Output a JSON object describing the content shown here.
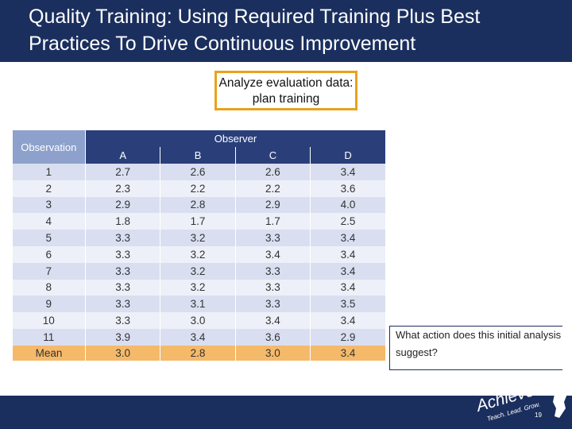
{
  "slide": {
    "title": "Quality Training: Using Required Training Plus Best Practices To Drive Continuous Improvement",
    "callout": "Analyze evaluation data: plan training",
    "question": "What action does this initial analysis suggest?",
    "slide_number": "19",
    "logo": {
      "brand": "AchieveNJ",
      "tagline": "Teach. Lead. Grow.",
      "colors": {
        "navy": "#1b2f5e",
        "white": "#ffffff"
      }
    }
  },
  "table": {
    "observation_header": "Observation",
    "observer_header": "Observer",
    "observers": [
      "A",
      "B",
      "C",
      "D"
    ],
    "rows": [
      {
        "observation": "1",
        "values": [
          "2.7",
          "2.6",
          "2.6",
          "3.4"
        ]
      },
      {
        "observation": "2",
        "values": [
          "2.3",
          "2.2",
          "2.2",
          "3.6"
        ]
      },
      {
        "observation": "3",
        "values": [
          "2.9",
          "2.8",
          "2.9",
          "4.0"
        ]
      },
      {
        "observation": "4",
        "values": [
          "1.8",
          "1.7",
          "1.7",
          "2.5"
        ]
      },
      {
        "observation": "5",
        "values": [
          "3.3",
          "3.2",
          "3.3",
          "3.4"
        ]
      },
      {
        "observation": "6",
        "values": [
          "3.3",
          "3.2",
          "3.4",
          "3.4"
        ]
      },
      {
        "observation": "7",
        "values": [
          "3.3",
          "3.2",
          "3.3",
          "3.4"
        ]
      },
      {
        "observation": "8",
        "values": [
          "3.3",
          "3.2",
          "3.3",
          "3.4"
        ]
      },
      {
        "observation": "9",
        "values": [
          "3.3",
          "3.1",
          "3.3",
          "3.5"
        ]
      },
      {
        "observation": "10",
        "values": [
          "3.3",
          "3.0",
          "3.4",
          "3.4"
        ]
      },
      {
        "observation": "11",
        "values": [
          "3.9",
          "3.4",
          "3.6",
          "2.9"
        ]
      }
    ],
    "mean": {
      "label": "Mean",
      "values": [
        "3.0",
        "2.8",
        "3.0",
        "3.4"
      ]
    },
    "colors": {
      "header": "#2a3f7a",
      "observation_header": "#8da1cc",
      "row_odd": "#d9dff0",
      "row_even": "#edf0f8",
      "mean_row": "#f5b96a"
    }
  }
}
